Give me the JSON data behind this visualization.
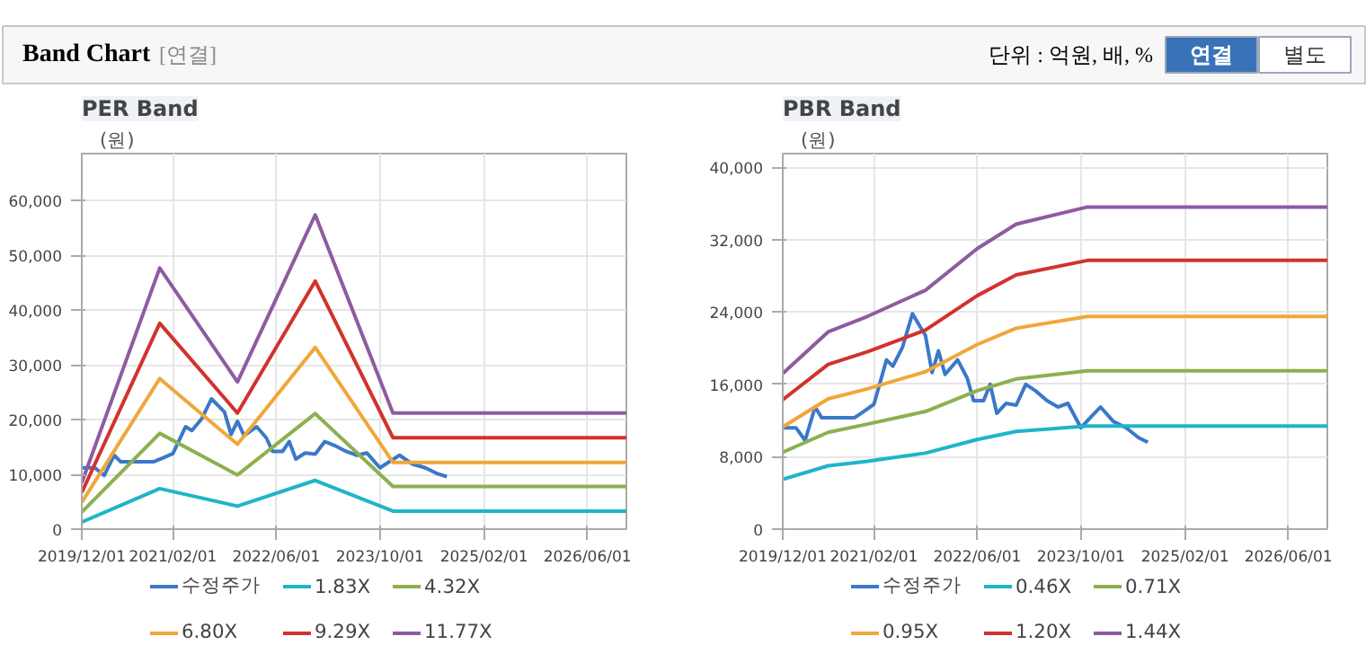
{
  "chart_data": [
    {
      "type": "other",
      "title": "Band Chart",
      "annotations": [
        "[연결]",
        "단위 : 억원, 배, %",
        "연결",
        "별도"
      ]
    },
    {
      "type": "line",
      "title": "PER Band",
      "ylabel": "(원)",
      "grid": true,
      "legend": "bottom",
      "marker": "none",
      "xlim": [
        "2019-12-01",
        "2026-12-01"
      ],
      "ylim": [
        0,
        68600
      ],
      "xticks": [
        {
          "value": "2019-12-01",
          "label": "2019/12/01"
        },
        {
          "value": "2021-02-01",
          "label": "2021/02/01"
        },
        {
          "value": "2022-06-01",
          "label": "2022/06/01"
        },
        {
          "value": "2023-10-01",
          "label": "2023/10/01"
        },
        {
          "value": "2025-02-01",
          "label": "2025/02/01"
        },
        {
          "value": "2026-06-01",
          "label": "2026/06/01"
        }
      ],
      "yticks": [
        0,
        {
          "value": 10000,
          "label": "10,000"
        },
        {
          "value": 20000,
          "label": "20,000"
        },
        {
          "value": 30000,
          "label": "30,000"
        },
        {
          "value": 40000,
          "label": "40,000"
        },
        {
          "value": 50000,
          "label": "50,000"
        },
        {
          "value": 60000,
          "label": "60,000"
        }
      ],
      "series": [
        {
          "name": "수정주가",
          "color": "#3a78c9",
          "x": [
            "2019-12-01",
            "2020-02-01",
            "2020-03-15",
            "2020-05-01",
            "2020-06-01",
            "2020-09-01",
            "2020-11-01",
            "2020-12-15",
            "2021-02-01",
            "2021-04-01",
            "2021-05-01",
            "2021-06-15",
            "2021-08-01",
            "2021-10-01",
            "2021-11-01",
            "2021-12-01",
            "2022-01-01",
            "2022-03-01",
            "2022-04-15",
            "2022-05-15",
            "2022-07-01",
            "2022-08-01",
            "2022-09-01",
            "2022-10-15",
            "2022-12-01",
            "2023-01-15",
            "2023-03-01",
            "2023-04-25",
            "2023-06-15",
            "2023-08-01",
            "2023-10-01",
            "2023-11-25",
            "2024-01-01",
            "2024-03-01",
            "2024-05-01",
            "2024-06-28",
            "2024-08-10"
          ],
          "values": [
            11200,
            11200,
            9800,
            13500,
            12300,
            12300,
            12300,
            13000,
            13800,
            18700,
            18000,
            20100,
            23800,
            21400,
            17300,
            19700,
            17100,
            18700,
            16700,
            14200,
            14200,
            16000,
            12800,
            13900,
            13700,
            16000,
            15300,
            14200,
            13500,
            13900,
            11200,
            12600,
            13500,
            11900,
            11200,
            10100,
            9600
          ]
        },
        {
          "name": "1.83X",
          "color": "#1fb5c7",
          "x": [
            "2019-12-01",
            "2020-12-01",
            "2021-12-01",
            "2022-12-01",
            "2023-12-01",
            "2026-12-01"
          ],
          "values": [
            1300,
            7400,
            4200,
            8900,
            3300,
            3300
          ]
        },
        {
          "name": "4.32X",
          "color": "#8db04f",
          "x": [
            "2019-12-01",
            "2020-12-01",
            "2021-12-01",
            "2022-12-01",
            "2023-12-01",
            "2026-12-01"
          ],
          "values": [
            3100,
            17500,
            9900,
            21100,
            7800,
            7800
          ]
        },
        {
          "name": "6.80X",
          "color": "#f0a73a",
          "x": [
            "2019-12-01",
            "2020-12-01",
            "2021-12-01",
            "2022-12-01",
            "2023-12-01",
            "2026-12-01"
          ],
          "values": [
            4900,
            27500,
            15500,
            33200,
            12200,
            12200
          ]
        },
        {
          "name": "9.29X",
          "color": "#d2322d",
          "x": [
            "2019-12-01",
            "2020-12-01",
            "2021-12-01",
            "2022-12-01",
            "2023-12-01",
            "2026-12-01"
          ],
          "values": [
            6700,
            37600,
            21200,
            45300,
            16700,
            16700
          ]
        },
        {
          "name": "11.77X",
          "color": "#8e5ba0",
          "x": [
            "2019-12-01",
            "2020-12-01",
            "2021-12-01",
            "2022-12-01",
            "2023-12-01",
            "2026-12-01"
          ],
          "values": [
            8500,
            47700,
            26900,
            57400,
            21200,
            21200
          ]
        }
      ]
    },
    {
      "type": "line",
      "title": "PBR Band",
      "ylabel": "(원)",
      "grid": true,
      "legend": "bottom",
      "marker": "none",
      "xlim": [
        "2019-12-01",
        "2026-12-01"
      ],
      "ylim": [
        0,
        41500
      ],
      "xticks": [
        {
          "value": "2019-12-01",
          "label": "2019/12/01"
        },
        {
          "value": "2021-02-01",
          "label": "2021/02/01"
        },
        {
          "value": "2022-06-01",
          "label": "2022/06/01"
        },
        {
          "value": "2023-10-01",
          "label": "2023/10/01"
        },
        {
          "value": "2025-02-01",
          "label": "2025/02/01"
        },
        {
          "value": "2026-06-01",
          "label": "2026/06/01"
        }
      ],
      "yticks": [
        0,
        {
          "value": 8000,
          "label": "8,000"
        },
        {
          "value": 16000,
          "label": "16,000"
        },
        {
          "value": 24000,
          "label": "24,000"
        },
        {
          "value": 32000,
          "label": "32,000"
        },
        {
          "value": 40000,
          "label": "40,000"
        }
      ],
      "series": [
        {
          "name": "수정주가",
          "color": "#3a78c9",
          "x": [
            "2019-12-01",
            "2020-02-01",
            "2020-03-15",
            "2020-05-01",
            "2020-06-01",
            "2020-09-01",
            "2020-11-01",
            "2020-12-15",
            "2021-02-01",
            "2021-04-01",
            "2021-05-01",
            "2021-06-15",
            "2021-08-01",
            "2021-10-01",
            "2021-11-01",
            "2021-12-01",
            "2022-01-01",
            "2022-03-01",
            "2022-04-15",
            "2022-05-15",
            "2022-07-01",
            "2022-08-01",
            "2022-09-01",
            "2022-10-15",
            "2022-12-01",
            "2023-01-15",
            "2023-03-01",
            "2023-04-25",
            "2023-06-15",
            "2023-08-01",
            "2023-10-01",
            "2023-11-25",
            "2024-01-01",
            "2024-03-01",
            "2024-05-01",
            "2024-06-28",
            "2024-08-10"
          ],
          "values": [
            11200,
            11200,
            9800,
            13500,
            12300,
            12300,
            12300,
            13000,
            13800,
            18700,
            18000,
            20100,
            23800,
            21400,
            17300,
            19700,
            17100,
            18700,
            16700,
            14200,
            14200,
            16000,
            12800,
            13900,
            13700,
            16000,
            15300,
            14200,
            13500,
            13900,
            11200,
            12600,
            13500,
            11900,
            11200,
            10100,
            9600
          ]
        },
        {
          "name": "0.46X",
          "color": "#1fb5c7",
          "x": [
            "2019-12-01",
            "2020-07-01",
            "2021-01-01",
            "2021-10-01",
            "2022-06-01",
            "2022-12-01",
            "2023-11-01",
            "2026-12-01"
          ],
          "values": [
            5500,
            7000,
            7500,
            8400,
            9900,
            10800,
            11400,
            11400
          ]
        },
        {
          "name": "0.71X",
          "color": "#8db04f",
          "x": [
            "2019-12-01",
            "2020-07-01",
            "2021-01-01",
            "2021-10-01",
            "2022-06-01",
            "2022-12-01",
            "2023-11-01",
            "2026-12-01"
          ],
          "values": [
            8500,
            10700,
            11600,
            13000,
            15300,
            16600,
            17500,
            17500
          ]
        },
        {
          "name": "0.95X",
          "color": "#f0a73a",
          "x": [
            "2019-12-01",
            "2020-07-01",
            "2021-01-01",
            "2021-10-01",
            "2022-06-01",
            "2022-12-01",
            "2023-11-01",
            "2026-12-01"
          ],
          "values": [
            11300,
            14400,
            15500,
            17400,
            20400,
            22200,
            23500,
            23500
          ]
        },
        {
          "name": "1.20X",
          "color": "#d2322d",
          "x": [
            "2019-12-01",
            "2020-07-01",
            "2021-01-01",
            "2021-10-01",
            "2022-06-01",
            "2022-12-01",
            "2023-11-01",
            "2026-12-01"
          ],
          "values": [
            14300,
            18200,
            19600,
            22000,
            25800,
            28100,
            29700,
            29700
          ]
        },
        {
          "name": "1.44X",
          "color": "#8e5ba0",
          "x": [
            "2019-12-01",
            "2020-07-01",
            "2021-01-01",
            "2021-10-01",
            "2022-06-01",
            "2022-12-01",
            "2023-11-01",
            "2026-12-01"
          ],
          "values": [
            17200,
            21800,
            23500,
            26400,
            31000,
            33700,
            35600,
            35600
          ]
        }
      ]
    }
  ]
}
